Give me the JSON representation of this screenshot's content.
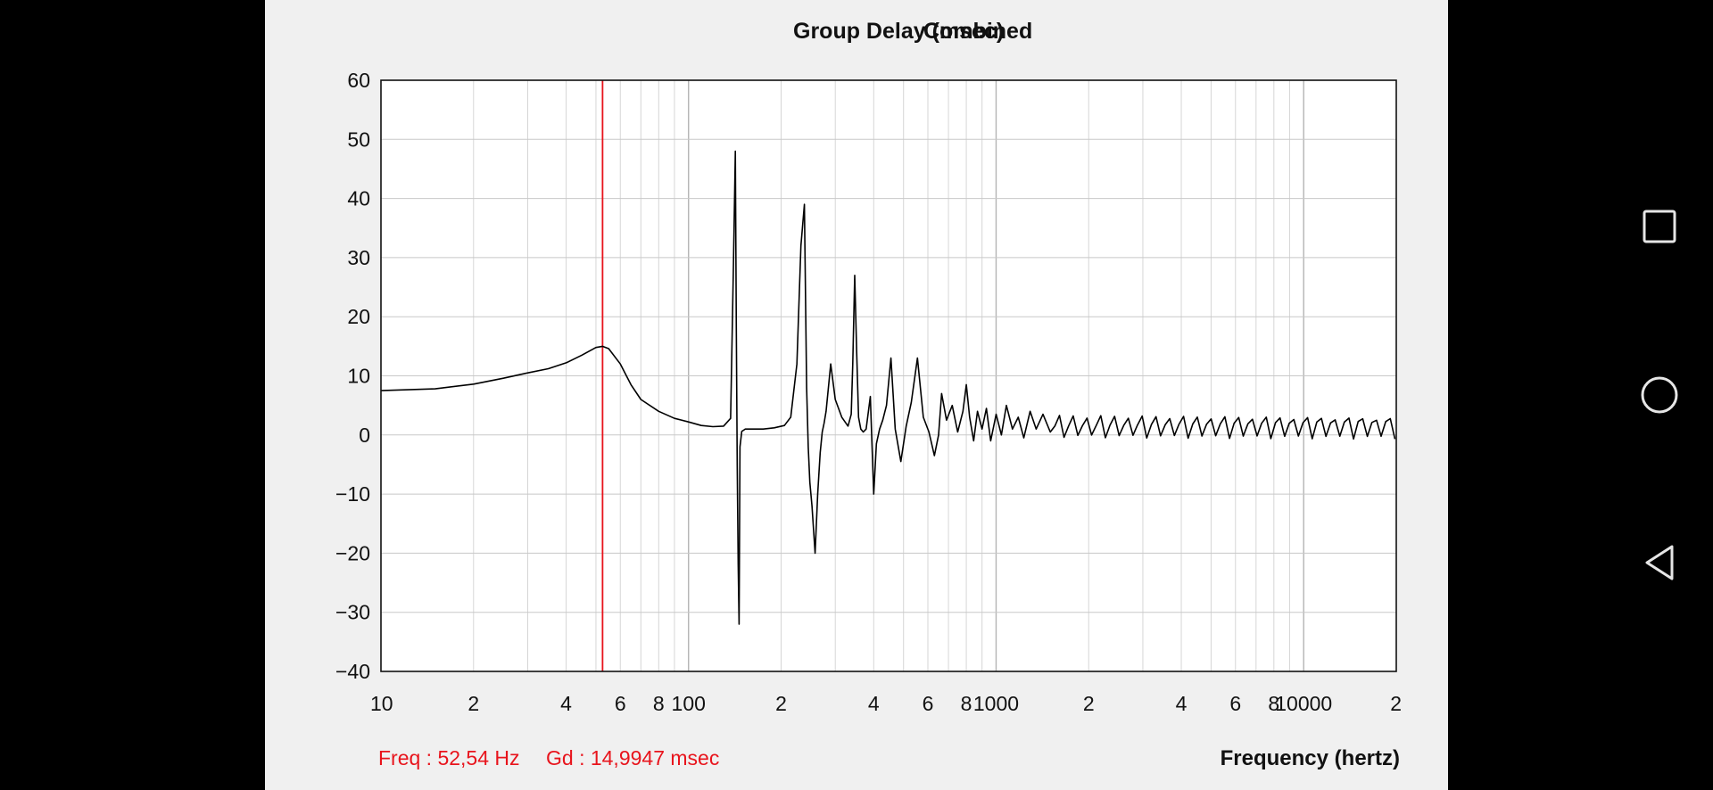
{
  "chart_data": {
    "type": "line",
    "title": "Group Delay (msec)",
    "subtitle": "Combined",
    "xlabel": "Frequency (hertz)",
    "ylabel": "",
    "x_scale": "log",
    "xlim": [
      10,
      20000
    ],
    "ylim": [
      -40,
      60
    ],
    "grid": true,
    "y_ticks": [
      60,
      50,
      40,
      30,
      20,
      10,
      0,
      -10,
      -20,
      -30,
      -40
    ],
    "x_tick_labels": [
      {
        "x": 10,
        "label": "10"
      },
      {
        "x": 20,
        "label": "2"
      },
      {
        "x": 40,
        "label": "4"
      },
      {
        "x": 60,
        "label": "6"
      },
      {
        "x": 80,
        "label": "8"
      },
      {
        "x": 100,
        "label": "100"
      },
      {
        "x": 200,
        "label": "2"
      },
      {
        "x": 400,
        "label": "4"
      },
      {
        "x": 600,
        "label": "6"
      },
      {
        "x": 800,
        "label": "8"
      },
      {
        "x": 1000,
        "label": "1000"
      },
      {
        "x": 2000,
        "label": "2"
      },
      {
        "x": 4000,
        "label": "4"
      },
      {
        "x": 6000,
        "label": "6"
      },
      {
        "x": 8000,
        "label": "8"
      },
      {
        "x": 10000,
        "label": "10000"
      },
      {
        "x": 20000,
        "label": "2"
      }
    ],
    "cursor": {
      "x": 52.54,
      "freq_text": "Freq : 52,54 Hz",
      "gd_text": "Gd : 14,9947 msec",
      "color": "#e8141c"
    },
    "series": [
      {
        "color": "#000000",
        "x": [
          10,
          15,
          20,
          25,
          30,
          35,
          40,
          45,
          50,
          52.5,
          55,
          60,
          65,
          70,
          80,
          90,
          100,
          110,
          120,
          130,
          137,
          140,
          142,
          143,
          144,
          145,
          146,
          147,
          149,
          151,
          153,
          160,
          175,
          190,
          205,
          215,
          225,
          232,
          238,
          242,
          245,
          248,
          252,
          258,
          263,
          268,
          272,
          276,
          280,
          285,
          290,
          300,
          315,
          330,
          338,
          342,
          347,
          352,
          357,
          363,
          370,
          378,
          390,
          400,
          408,
          418,
          428,
          440,
          455,
          470,
          490,
          510,
          530,
          555,
          580,
          605,
          630,
          650,
          665,
          690,
          720,
          750,
          780,
          800,
          820,
          845,
          870,
          900,
          930,
          960,
          1000,
          1040,
          1080,
          1130,
          1180,
          1230,
          1290,
          1350,
          1420,
          1500
        ],
        "y": [
          7.5,
          7.8,
          8.6,
          9.6,
          10.5,
          11.2,
          12.2,
          13.5,
          14.8,
          15.0,
          14.6,
          12.0,
          8.5,
          6.0,
          4.0,
          2.8,
          2.2,
          1.6,
          1.4,
          1.5,
          2.8,
          29,
          48,
          18,
          -5,
          -22,
          -32,
          -2,
          0.6,
          0.8,
          1.0,
          1.0,
          1.0,
          1.2,
          1.6,
          3.0,
          12,
          32,
          39,
          8,
          -2,
          -8,
          -12,
          -20,
          -10,
          -3,
          0.5,
          2.0,
          4.0,
          8.0,
          12,
          6.0,
          3.0,
          1.5,
          3.5,
          12,
          27,
          14,
          3.0,
          1.0,
          0.5,
          1.0,
          6.5,
          -10,
          -1.5,
          1.0,
          2.5,
          5.0,
          13,
          1.0,
          -4.5,
          1.5,
          5.5,
          13,
          3.0,
          0.5,
          -3.5,
          0.0,
          7.0,
          2.5,
          5.0,
          0.5,
          4.0,
          8.5,
          3.0,
          -1.0,
          4.0,
          1.0,
          4.5,
          -1.0,
          3.5,
          0.0,
          5.0,
          1.0,
          3.0,
          -0.5,
          4.0,
          1.0,
          3.5,
          0.5
        ]
      }
    ]
  }
}
